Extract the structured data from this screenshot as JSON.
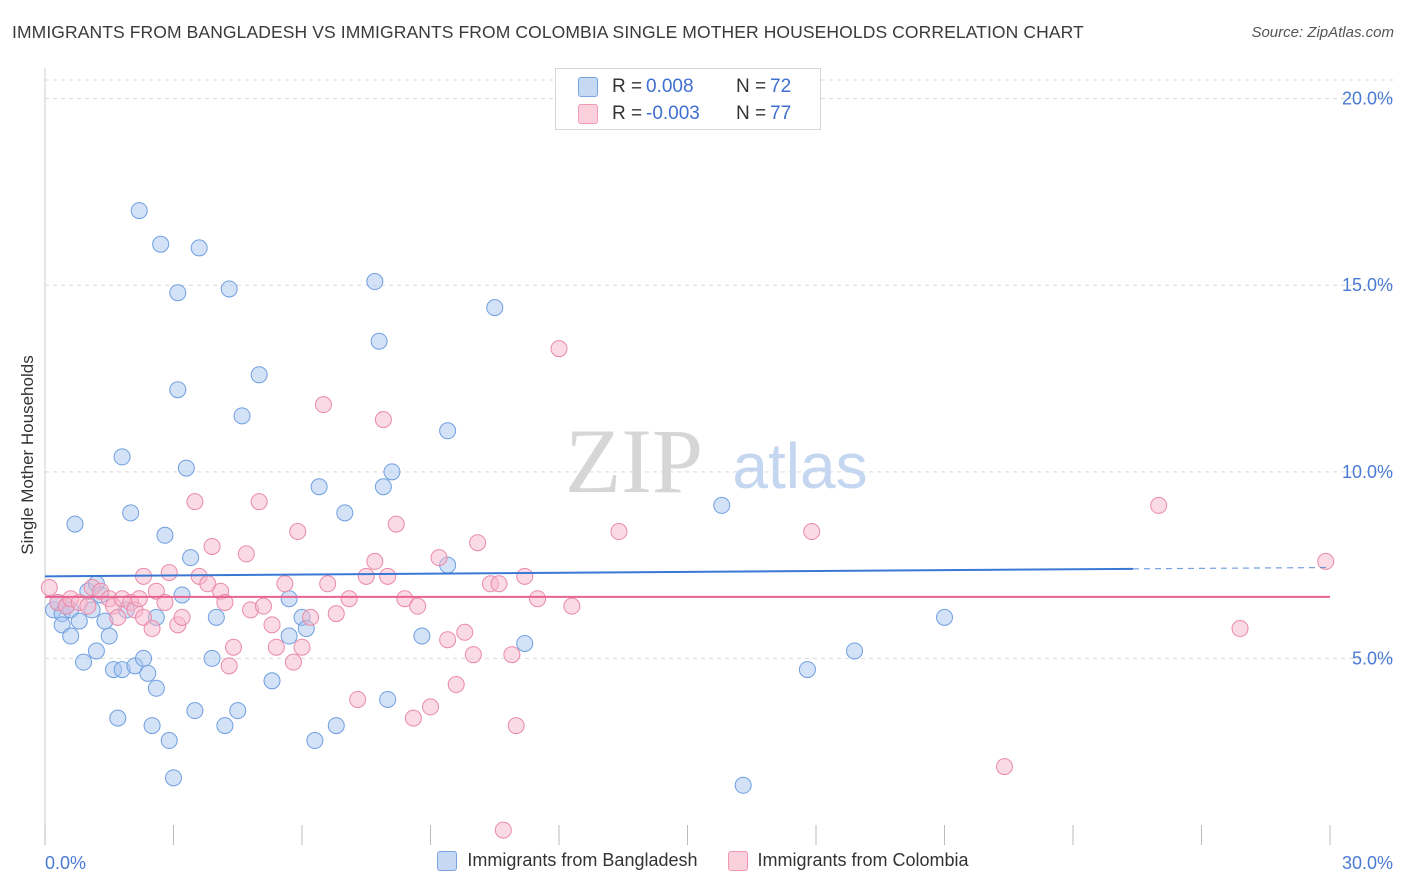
{
  "header": {
    "title": "IMMIGRANTS FROM BANGLADESH VS IMMIGRANTS FROM COLOMBIA SINGLE MOTHER HOUSEHOLDS CORRELATION CHART",
    "source": "Source: ZipAtlas.com"
  },
  "watermark": {
    "zip": "ZIP",
    "atlas": "atlas"
  },
  "legend": {
    "r_label": "R =",
    "n_label": "N =",
    "rows": [
      {
        "r_value": "0.008",
        "n_value": "72",
        "color": "#a8c6ef"
      },
      {
        "r_value": "-0.003",
        "n_value": "77",
        "color": "#f5b8cb"
      }
    ]
  },
  "bottom_legend": [
    {
      "label": "Immigrants from Bangladesh",
      "color": "#a8c6ef"
    },
    {
      "label": "Immigrants from Colombia",
      "color": "#f5b8cb"
    }
  ],
  "chart_data": {
    "type": "scatter",
    "title": "IMMIGRANTS FROM BANGLADESH VS IMMIGRANTS FROM COLOMBIA SINGLE MOTHER HOUSEHOLDS CORRELATION CHART",
    "xlabel": "",
    "ylabel": "Single Mother Households",
    "xlim": [
      0,
      30
    ],
    "ylim": [
      0,
      20.5
    ],
    "x_tick_labels": [
      "0.0%",
      "30.0%"
    ],
    "y_ticks": [
      5,
      10,
      15,
      20
    ],
    "y_tick_labels": [
      "5.0%",
      "10.0%",
      "15.0%",
      "20.0%"
    ],
    "grid": "horizontal dashed",
    "legend_position": "top-center",
    "series": [
      {
        "name": "Immigrants from Bangladesh",
        "color": "#a8c6ef",
        "stroke": "#6f9fe0",
        "trend_color": "#3a78d4",
        "trend": {
          "x": [
            0,
            25.4
          ],
          "y": [
            7.2,
            7.4
          ],
          "dashed_to": 30
        },
        "points": [
          [
            0.2,
            6.3
          ],
          [
            0.3,
            6.5
          ],
          [
            0.4,
            6.2
          ],
          [
            0.5,
            6.4
          ],
          [
            0.6,
            6.3
          ],
          [
            0.4,
            5.9
          ],
          [
            0.6,
            5.6
          ],
          [
            0.7,
            8.6
          ],
          [
            0.8,
            6.0
          ],
          [
            0.9,
            4.9
          ],
          [
            1.0,
            6.8
          ],
          [
            1.1,
            6.3
          ],
          [
            1.2,
            5.2
          ],
          [
            1.2,
            7.0
          ],
          [
            1.3,
            6.7
          ],
          [
            1.4,
            6.0
          ],
          [
            1.5,
            5.6
          ],
          [
            1.6,
            4.7
          ],
          [
            1.7,
            3.4
          ],
          [
            1.8,
            4.7
          ],
          [
            1.8,
            10.4
          ],
          [
            1.9,
            6.3
          ],
          [
            2.0,
            8.9
          ],
          [
            2.1,
            4.8
          ],
          [
            2.2,
            17.0
          ],
          [
            2.3,
            5.0
          ],
          [
            2.4,
            4.6
          ],
          [
            2.5,
            3.2
          ],
          [
            2.6,
            6.1
          ],
          [
            2.6,
            4.2
          ],
          [
            2.7,
            16.1
          ],
          [
            2.8,
            8.3
          ],
          [
            2.9,
            2.8
          ],
          [
            3.0,
            1.8
          ],
          [
            3.1,
            14.8
          ],
          [
            3.1,
            12.2
          ],
          [
            3.2,
            6.7
          ],
          [
            3.3,
            10.1
          ],
          [
            3.4,
            7.7
          ],
          [
            3.5,
            3.6
          ],
          [
            3.6,
            16.0
          ],
          [
            3.9,
            5.0
          ],
          [
            4.0,
            6.1
          ],
          [
            4.2,
            3.2
          ],
          [
            4.3,
            14.9
          ],
          [
            4.5,
            3.6
          ],
          [
            4.6,
            11.5
          ],
          [
            5.0,
            12.6
          ],
          [
            5.3,
            4.4
          ],
          [
            5.7,
            6.6
          ],
          [
            5.7,
            5.6
          ],
          [
            6.0,
            6.1
          ],
          [
            6.1,
            5.8
          ],
          [
            6.3,
            2.8
          ],
          [
            6.4,
            9.6
          ],
          [
            6.8,
            3.2
          ],
          [
            7.0,
            8.9
          ],
          [
            7.7,
            15.1
          ],
          [
            7.8,
            13.5
          ],
          [
            7.9,
            9.6
          ],
          [
            8.0,
            3.9
          ],
          [
            8.1,
            10.0
          ],
          [
            8.8,
            5.6
          ],
          [
            9.4,
            7.5
          ],
          [
            9.4,
            11.1
          ],
          [
            10.5,
            14.4
          ],
          [
            11.2,
            5.4
          ],
          [
            15.8,
            9.1
          ],
          [
            17.8,
            4.7
          ],
          [
            18.9,
            5.2
          ],
          [
            21.0,
            6.1
          ],
          [
            16.3,
            1.6
          ]
        ]
      },
      {
        "name": "Immigrants from Colombia",
        "color": "#f5b8cb",
        "stroke": "#ea8aa8",
        "trend_color": "#e8628f",
        "trend": {
          "x": [
            0,
            30
          ],
          "y": [
            6.65,
            6.65
          ]
        },
        "points": [
          [
            0.1,
            6.9
          ],
          [
            0.3,
            6.5
          ],
          [
            0.5,
            6.4
          ],
          [
            0.6,
            6.6
          ],
          [
            0.8,
            6.5
          ],
          [
            1.0,
            6.4
          ],
          [
            1.1,
            6.9
          ],
          [
            1.3,
            6.8
          ],
          [
            1.5,
            6.6
          ],
          [
            1.6,
            6.4
          ],
          [
            1.7,
            6.1
          ],
          [
            1.8,
            6.6
          ],
          [
            2.0,
            6.5
          ],
          [
            2.1,
            6.3
          ],
          [
            2.2,
            6.6
          ],
          [
            2.3,
            6.1
          ],
          [
            2.3,
            7.2
          ],
          [
            2.5,
            5.8
          ],
          [
            2.6,
            6.8
          ],
          [
            2.8,
            6.5
          ],
          [
            2.9,
            7.3
          ],
          [
            3.1,
            5.9
          ],
          [
            3.2,
            6.1
          ],
          [
            3.5,
            9.2
          ],
          [
            3.6,
            7.2
          ],
          [
            3.8,
            7.0
          ],
          [
            3.9,
            8.0
          ],
          [
            4.1,
            6.8
          ],
          [
            4.2,
            6.5
          ],
          [
            4.3,
            4.8
          ],
          [
            4.4,
            5.3
          ],
          [
            4.7,
            7.8
          ],
          [
            4.8,
            6.3
          ],
          [
            5.0,
            9.2
          ],
          [
            5.1,
            6.4
          ],
          [
            5.3,
            5.9
          ],
          [
            5.4,
            5.3
          ],
          [
            5.6,
            7.0
          ],
          [
            5.8,
            4.9
          ],
          [
            5.9,
            8.4
          ],
          [
            6.0,
            5.3
          ],
          [
            6.2,
            6.1
          ],
          [
            6.5,
            11.8
          ],
          [
            6.6,
            7.0
          ],
          [
            6.8,
            6.2
          ],
          [
            7.1,
            6.6
          ],
          [
            7.3,
            3.9
          ],
          [
            7.5,
            7.2
          ],
          [
            7.7,
            7.6
          ],
          [
            7.9,
            11.4
          ],
          [
            8.0,
            7.2
          ],
          [
            8.2,
            8.6
          ],
          [
            8.4,
            6.6
          ],
          [
            8.6,
            3.4
          ],
          [
            8.7,
            6.4
          ],
          [
            9.0,
            3.7
          ],
          [
            9.2,
            7.7
          ],
          [
            9.4,
            5.5
          ],
          [
            9.6,
            4.3
          ],
          [
            9.8,
            5.7
          ],
          [
            10.0,
            5.1
          ],
          [
            10.1,
            8.1
          ],
          [
            10.4,
            7.0
          ],
          [
            10.6,
            7.0
          ],
          [
            10.7,
            0.4
          ],
          [
            10.9,
            5.1
          ],
          [
            11.0,
            3.2
          ],
          [
            11.2,
            7.2
          ],
          [
            11.5,
            6.6
          ],
          [
            12.0,
            13.3
          ],
          [
            12.3,
            6.4
          ],
          [
            13.4,
            8.4
          ],
          [
            17.9,
            8.4
          ],
          [
            22.4,
            2.1
          ],
          [
            26.0,
            9.1
          ],
          [
            27.9,
            5.8
          ],
          [
            29.9,
            7.6
          ]
        ]
      }
    ]
  }
}
